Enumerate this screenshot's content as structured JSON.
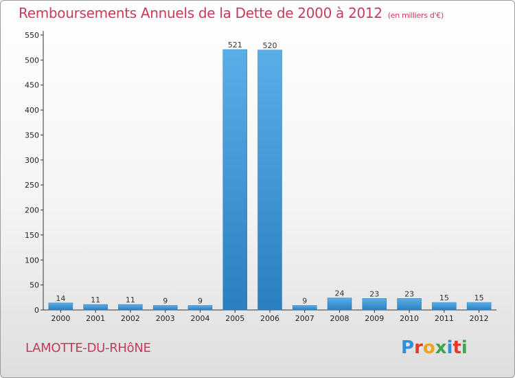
{
  "title": "Remboursements Annuels de la Dette de 2000 à 2012",
  "unit_label": "(en milliers d'€)",
  "commune": "LAMOTTE-DU-RHôNE",
  "logo": {
    "text": "Proxiti",
    "colors": [
      "#2f8fd8",
      "#e8382e",
      "#f0a21a",
      "#3aa84a",
      "#2f8fd8",
      "#e8382e",
      "#3aa84a"
    ]
  },
  "colors": {
    "title": "#c83a5a",
    "bar_light": "#5aaee8",
    "bar_dark": "#2a7fc0"
  },
  "chart_data": {
    "type": "bar",
    "title": "Remboursements Annuels de la Dette de 2000 à 2012",
    "xlabel": "",
    "ylabel": "",
    "categories": [
      "2000",
      "2001",
      "2002",
      "2003",
      "2004",
      "2005",
      "2006",
      "2007",
      "2008",
      "2009",
      "2010",
      "2011",
      "2012"
    ],
    "values": [
      14,
      11,
      11,
      9,
      9,
      521,
      520,
      9,
      24,
      23,
      23,
      15,
      15
    ],
    "ylim": [
      0,
      550
    ],
    "yticks": [
      0,
      50,
      100,
      150,
      200,
      250,
      300,
      350,
      400,
      450,
      500,
      550
    ],
    "grid": false,
    "legend": "none"
  }
}
